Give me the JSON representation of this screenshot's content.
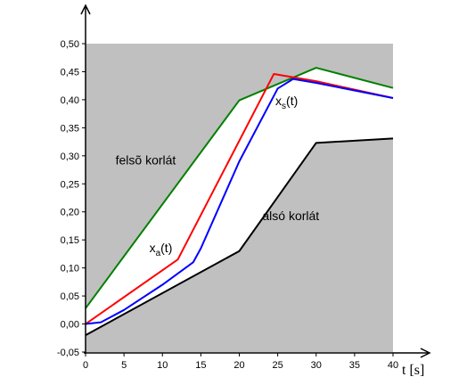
{
  "chart_data": {
    "type": "line",
    "xlabel": "t [s]",
    "ylabel": "",
    "xlim": [
      0,
      40
    ],
    "ylim": [
      -0.05,
      0.5
    ],
    "x_ticks": [
      "0",
      "5",
      "10",
      "15",
      "20",
      "25",
      "30",
      "35",
      "40"
    ],
    "y_ticks": [
      "-0,05",
      "0,00",
      "0,05",
      "0,10",
      "0,15",
      "0,20",
      "0,25",
      "0,30",
      "0,35",
      "0,40",
      "0,45",
      "0,50"
    ],
    "grid": false,
    "colors": {
      "shaded_region": "#c0c0c0",
      "upper": "#008000",
      "red": "#ff0000",
      "blue": "#0000ff",
      "lower": "#000000"
    },
    "series": [
      {
        "color": "#008000",
        "points": [
          [
            0,
            0.028
          ],
          [
            20,
            0.399
          ],
          [
            30,
            0.457
          ],
          [
            40,
            0.421
          ]
        ]
      },
      {
        "color": "#ff0000",
        "points": [
          [
            0,
            0.0
          ],
          [
            12,
            0.115
          ],
          [
            24.5,
            0.446
          ],
          [
            30,
            0.433
          ],
          [
            40,
            0.403
          ]
        ]
      },
      {
        "color": "#0000ff",
        "points": [
          [
            0,
            0.0
          ],
          [
            2,
            0.003
          ],
          [
            5,
            0.025
          ],
          [
            10,
            0.07
          ],
          [
            12,
            0.09
          ],
          [
            14,
            0.11
          ],
          [
            15,
            0.135
          ],
          [
            20,
            0.29
          ],
          [
            25,
            0.42
          ],
          [
            27,
            0.437
          ],
          [
            30,
            0.43
          ],
          [
            40,
            0.403
          ]
        ]
      },
      {
        "color": "#000000",
        "points": [
          [
            0,
            -0.02
          ],
          [
            20,
            0.13
          ],
          [
            30,
            0.323
          ],
          [
            40,
            0.331
          ]
        ]
      }
    ],
    "annotations": [
      {
        "text": "felsõ korlát",
        "x": 3.9,
        "y": 0.285
      },
      {
        "text": "x",
        "sub": "s",
        "suffix": "(t)",
        "x": 24.7,
        "y": 0.39
      },
      {
        "text": "x",
        "sub": "a",
        "suffix": "(t)",
        "x": 8.3,
        "y": 0.128
      },
      {
        "text": "alsó korlát",
        "x": 23,
        "y": 0.185
      }
    ]
  }
}
